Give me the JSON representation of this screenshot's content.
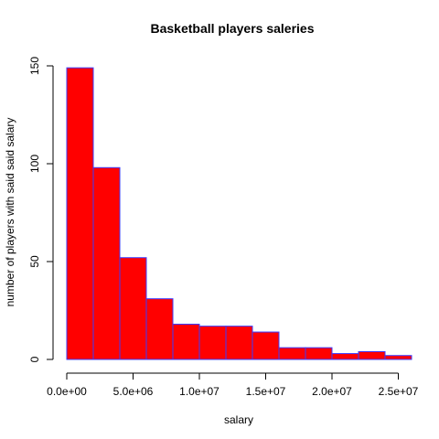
{
  "chart_data": {
    "type": "bar",
    "title": "Basketball players saleries",
    "xlabel": "salary",
    "ylabel": "number of players with said said salary",
    "bin_edges": [
      0,
      2000000,
      4000000,
      6000000,
      8000000,
      10000000,
      12000000,
      14000000,
      16000000,
      18000000,
      20000000,
      22000000,
      24000000,
      26000000
    ],
    "values": [
      149,
      98,
      52,
      31,
      18,
      17,
      17,
      14,
      6,
      6,
      3,
      4,
      2
    ],
    "xlim": [
      0,
      26000000
    ],
    "ylim": [
      0,
      150
    ],
    "x_ticks": [
      {
        "value": 0,
        "label": "0.0e+00"
      },
      {
        "value": 5000000,
        "label": "5.0e+06"
      },
      {
        "value": 10000000,
        "label": "1.0e+07"
      },
      {
        "value": 15000000,
        "label": "1.5e+07"
      },
      {
        "value": 20000000,
        "label": "2.0e+07"
      },
      {
        "value": 25000000,
        "label": "2.5e+07"
      }
    ],
    "y_ticks": [
      {
        "value": 0,
        "label": "0"
      },
      {
        "value": 50,
        "label": "50"
      },
      {
        "value": 100,
        "label": "100"
      },
      {
        "value": 150,
        "label": "150"
      }
    ],
    "bar_fill": "#ff0000",
    "bar_border": "#3b3bff",
    "grid": false
  }
}
